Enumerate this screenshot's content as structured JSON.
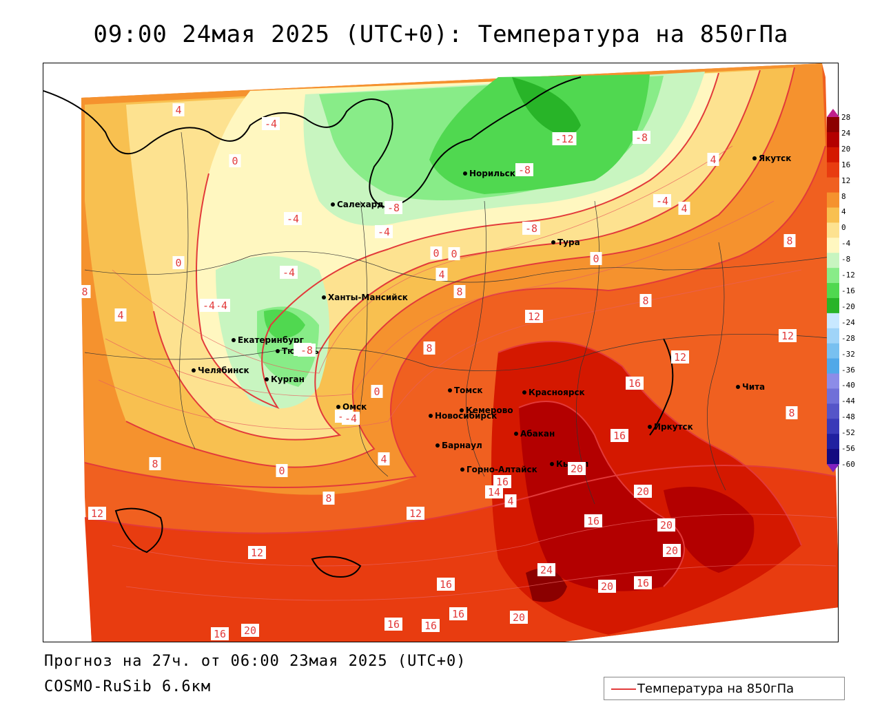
{
  "title": "09:00 24мая 2025 (UTC+0): Температура на 850гПа",
  "footer": {
    "forecast": "Прогноз на 27ч. от 06:00 23мая 2025 (UTC+0)",
    "model": "COSMO-RuSib 6.6км"
  },
  "legend": {
    "label": "Температура на 850гПа",
    "line_color": "#e23a3a"
  },
  "colorbar": {
    "labels": [
      "28",
      "24",
      "20",
      "16",
      "12",
      "8",
      "4",
      "0",
      "-4",
      "-8",
      "-12",
      "-16",
      "-20",
      "-24",
      "-28",
      "-32",
      "-36",
      "-40",
      "-44",
      "-48",
      "-52",
      "-56",
      "-60"
    ],
    "colors": [
      "#8b0000",
      "#b30000",
      "#d41800",
      "#e83c10",
      "#f06020",
      "#f5922e",
      "#f8c050",
      "#fde290",
      "#fff7c0",
      "#c8f5c0",
      "#88ec88",
      "#50d850",
      "#28b428",
      "#c8e8ff",
      "#a0d4f8",
      "#78c0f0",
      "#50a8e8",
      "#8c8ce8",
      "#7070d8",
      "#5555c8",
      "#3a3ab8",
      "#2020a0",
      "#140a80"
    ],
    "top_tip_color": "#c0208c",
    "bottom_tip_color": "#8020c0"
  },
  "cities": [
    {
      "name": "Якутск"
    },
    {
      "name": "Норильск"
    },
    {
      "name": "Салехард"
    },
    {
      "name": "Тура"
    },
    {
      "name": "Ханты-Мансийск"
    },
    {
      "name": "Екатеринбург"
    },
    {
      "name": "Тюмень"
    },
    {
      "name": "Челябинск"
    },
    {
      "name": "Курган"
    },
    {
      "name": "Омск"
    },
    {
      "name": "Новосибирск"
    },
    {
      "name": "Томск"
    },
    {
      "name": "Кемерово"
    },
    {
      "name": "Красноярск"
    },
    {
      "name": "Барнаул"
    },
    {
      "name": "Абакан"
    },
    {
      "name": "Горно-Алтайск"
    },
    {
      "name": "Кызыл"
    },
    {
      "name": "Иркутск"
    },
    {
      "name": "Чита"
    }
  ],
  "isotherm_labels": [
    "4",
    "-4",
    "0",
    "-4",
    "-8",
    "-12",
    "-8",
    "4",
    "8",
    "-8",
    "-4",
    "0",
    "-8",
    "-4",
    "-4",
    "8",
    "0",
    "0",
    "-4",
    "0",
    "-4",
    "4",
    "4",
    "8",
    "8",
    "-4",
    "12",
    "12",
    "8",
    "-8",
    "-4",
    "4",
    "8",
    "0",
    "16",
    "12",
    "0",
    "4",
    "8",
    "-4",
    "16",
    "20",
    "16",
    "16",
    "8",
    "12",
    "16",
    "12",
    "14",
    "4",
    "20",
    "16",
    "20",
    "20",
    "12",
    "24",
    "20",
    "16",
    "16",
    "16",
    "20",
    "16",
    "20"
  ]
}
